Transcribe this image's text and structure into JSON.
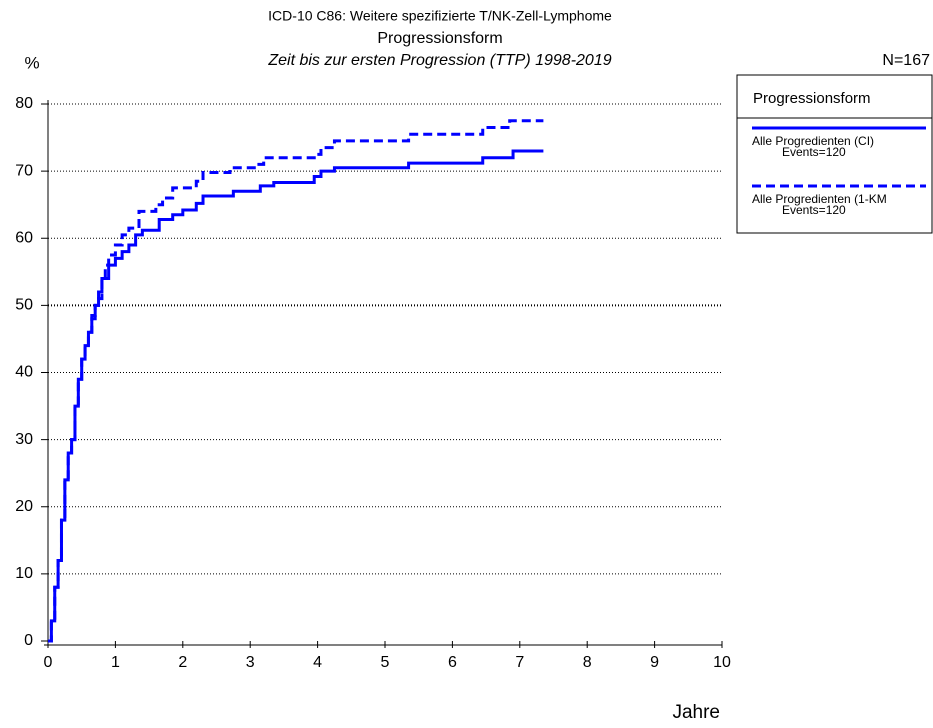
{
  "chart_data": {
    "type": "step",
    "title": "ICD-10 C86: Weitere spezifizierte T/NK-Zell-Lymphome",
    "subtitle": "Progressionsform",
    "subtitle2": "Zeit bis zur ersten Progression (TTP) 1998-2019",
    "ylabel": "%",
    "xlabel": "Jahre",
    "n_label": "N=167",
    "legend_title": "Progressionsform",
    "xlim": [
      0,
      10
    ],
    "xticks": [
      0,
      1,
      2,
      3,
      4,
      5,
      6,
      7,
      8,
      9,
      10
    ],
    "ylim": [
      0,
      80
    ],
    "yticks": [
      0,
      10,
      20,
      30,
      40,
      50,
      60,
      70,
      80
    ],
    "grid": true,
    "legend_position": "right",
    "series": [
      {
        "name": "Alle Progredienten (CI)",
        "note": "Events=120",
        "color": "#0000ff",
        "dash": false,
        "x": [
          0,
          0.05,
          0.1,
          0.15,
          0.2,
          0.25,
          0.3,
          0.35,
          0.4,
          0.45,
          0.5,
          0.55,
          0.6,
          0.65,
          0.7,
          0.75,
          0.8,
          0.9,
          1.0,
          1.1,
          1.2,
          1.3,
          1.4,
          1.65,
          1.85,
          2.0,
          2.2,
          2.3,
          2.75,
          3.15,
          3.35,
          3.95,
          4.05,
          4.25,
          5.35,
          6.45,
          6.9,
          7.35
        ],
        "values": [
          0,
          3,
          8,
          12,
          18,
          24,
          28,
          30,
          35,
          39,
          42,
          44,
          46,
          48,
          50,
          52,
          54,
          56,
          57,
          58,
          59,
          60.5,
          61.2,
          62.8,
          63.5,
          64.2,
          65.2,
          66.3,
          67,
          67.8,
          68.3,
          69.2,
          70,
          70.5,
          71.2,
          72,
          73,
          73
        ]
      },
      {
        "name": "Alle Progredienten (1-KM",
        "note": "Events=120",
        "color": "#0000ff",
        "dash": true,
        "x": [
          0,
          0.05,
          0.1,
          0.15,
          0.2,
          0.25,
          0.3,
          0.35,
          0.4,
          0.45,
          0.5,
          0.55,
          0.6,
          0.65,
          0.7,
          0.75,
          0.8,
          0.85,
          0.9,
          1.0,
          1.1,
          1.2,
          1.35,
          1.6,
          1.7,
          1.85,
          2.2,
          2.3,
          2.7,
          3.1,
          3.2,
          3.95,
          4.05,
          4.25,
          5.35,
          6.45,
          6.85,
          7.35
        ],
        "values": [
          0,
          3,
          8,
          12,
          18,
          24,
          28,
          30,
          35,
          39,
          42,
          44,
          46,
          48.5,
          50,
          51,
          54,
          56,
          57.5,
          59,
          60.5,
          61.5,
          64,
          65,
          66,
          67.5,
          68.5,
          69.8,
          70.5,
          71,
          72,
          72.5,
          73.5,
          74.5,
          75.5,
          76.5,
          77.5,
          77.5
        ]
      }
    ]
  }
}
